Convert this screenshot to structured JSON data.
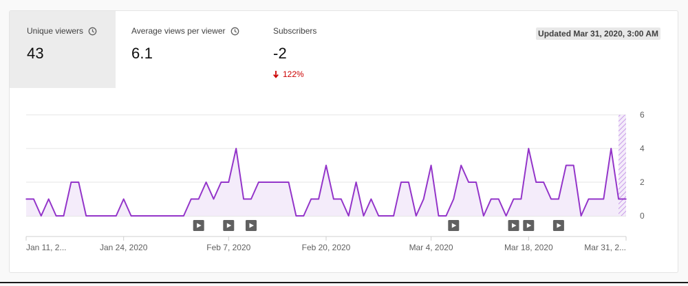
{
  "metrics": [
    {
      "label": "Unique viewers",
      "value": "43",
      "has_info_icon": true,
      "selected": true
    },
    {
      "label": "Average views per viewer",
      "value": "6.1",
      "has_info_icon": true,
      "selected": false
    },
    {
      "label": "Subscribers",
      "value": "-2",
      "has_info_icon": false,
      "selected": false,
      "change": "122%",
      "change_direction": "down"
    }
  ],
  "updated": "Updated Mar 31, 2020, 3:00 AM",
  "colors": {
    "line": "#9334c9",
    "fill": "#f4ecfa",
    "down": "#cc0000",
    "marker": "#606060"
  },
  "chart_data": {
    "type": "area",
    "x_tick_labels": [
      "Jan 11, 2...",
      "Jan 24, 2020",
      "Feb 7, 2020",
      "Feb 20, 2020",
      "Mar 4, 2020",
      "Mar 18, 2020",
      "Mar 31, 2..."
    ],
    "y_ticks": [
      0,
      2,
      4,
      6
    ],
    "ylim": [
      0,
      6
    ],
    "grid": true,
    "y_axis_side": "right",
    "series": [
      {
        "values": [
          1,
          1,
          0,
          1,
          0,
          0,
          2,
          2,
          0,
          0,
          0,
          0,
          0,
          1,
          0,
          0,
          0,
          0,
          0,
          0,
          0,
          0,
          1,
          1,
          2,
          1,
          2,
          2,
          4,
          1,
          1,
          2,
          2,
          2,
          2,
          2,
          0,
          0,
          1,
          1,
          3,
          1,
          1,
          0,
          2,
          0,
          1,
          0,
          0,
          0,
          2,
          2,
          0,
          1,
          3,
          0,
          0,
          1,
          3,
          2,
          2,
          0,
          1,
          1,
          0,
          1,
          1,
          4,
          2,
          2,
          1,
          1,
          3,
          3,
          0,
          1,
          1,
          1,
          4,
          1,
          1
        ]
      }
    ],
    "video_markers_day_index": [
      23,
      27,
      30,
      57,
      65,
      67,
      71
    ],
    "partial_last_day": true
  }
}
